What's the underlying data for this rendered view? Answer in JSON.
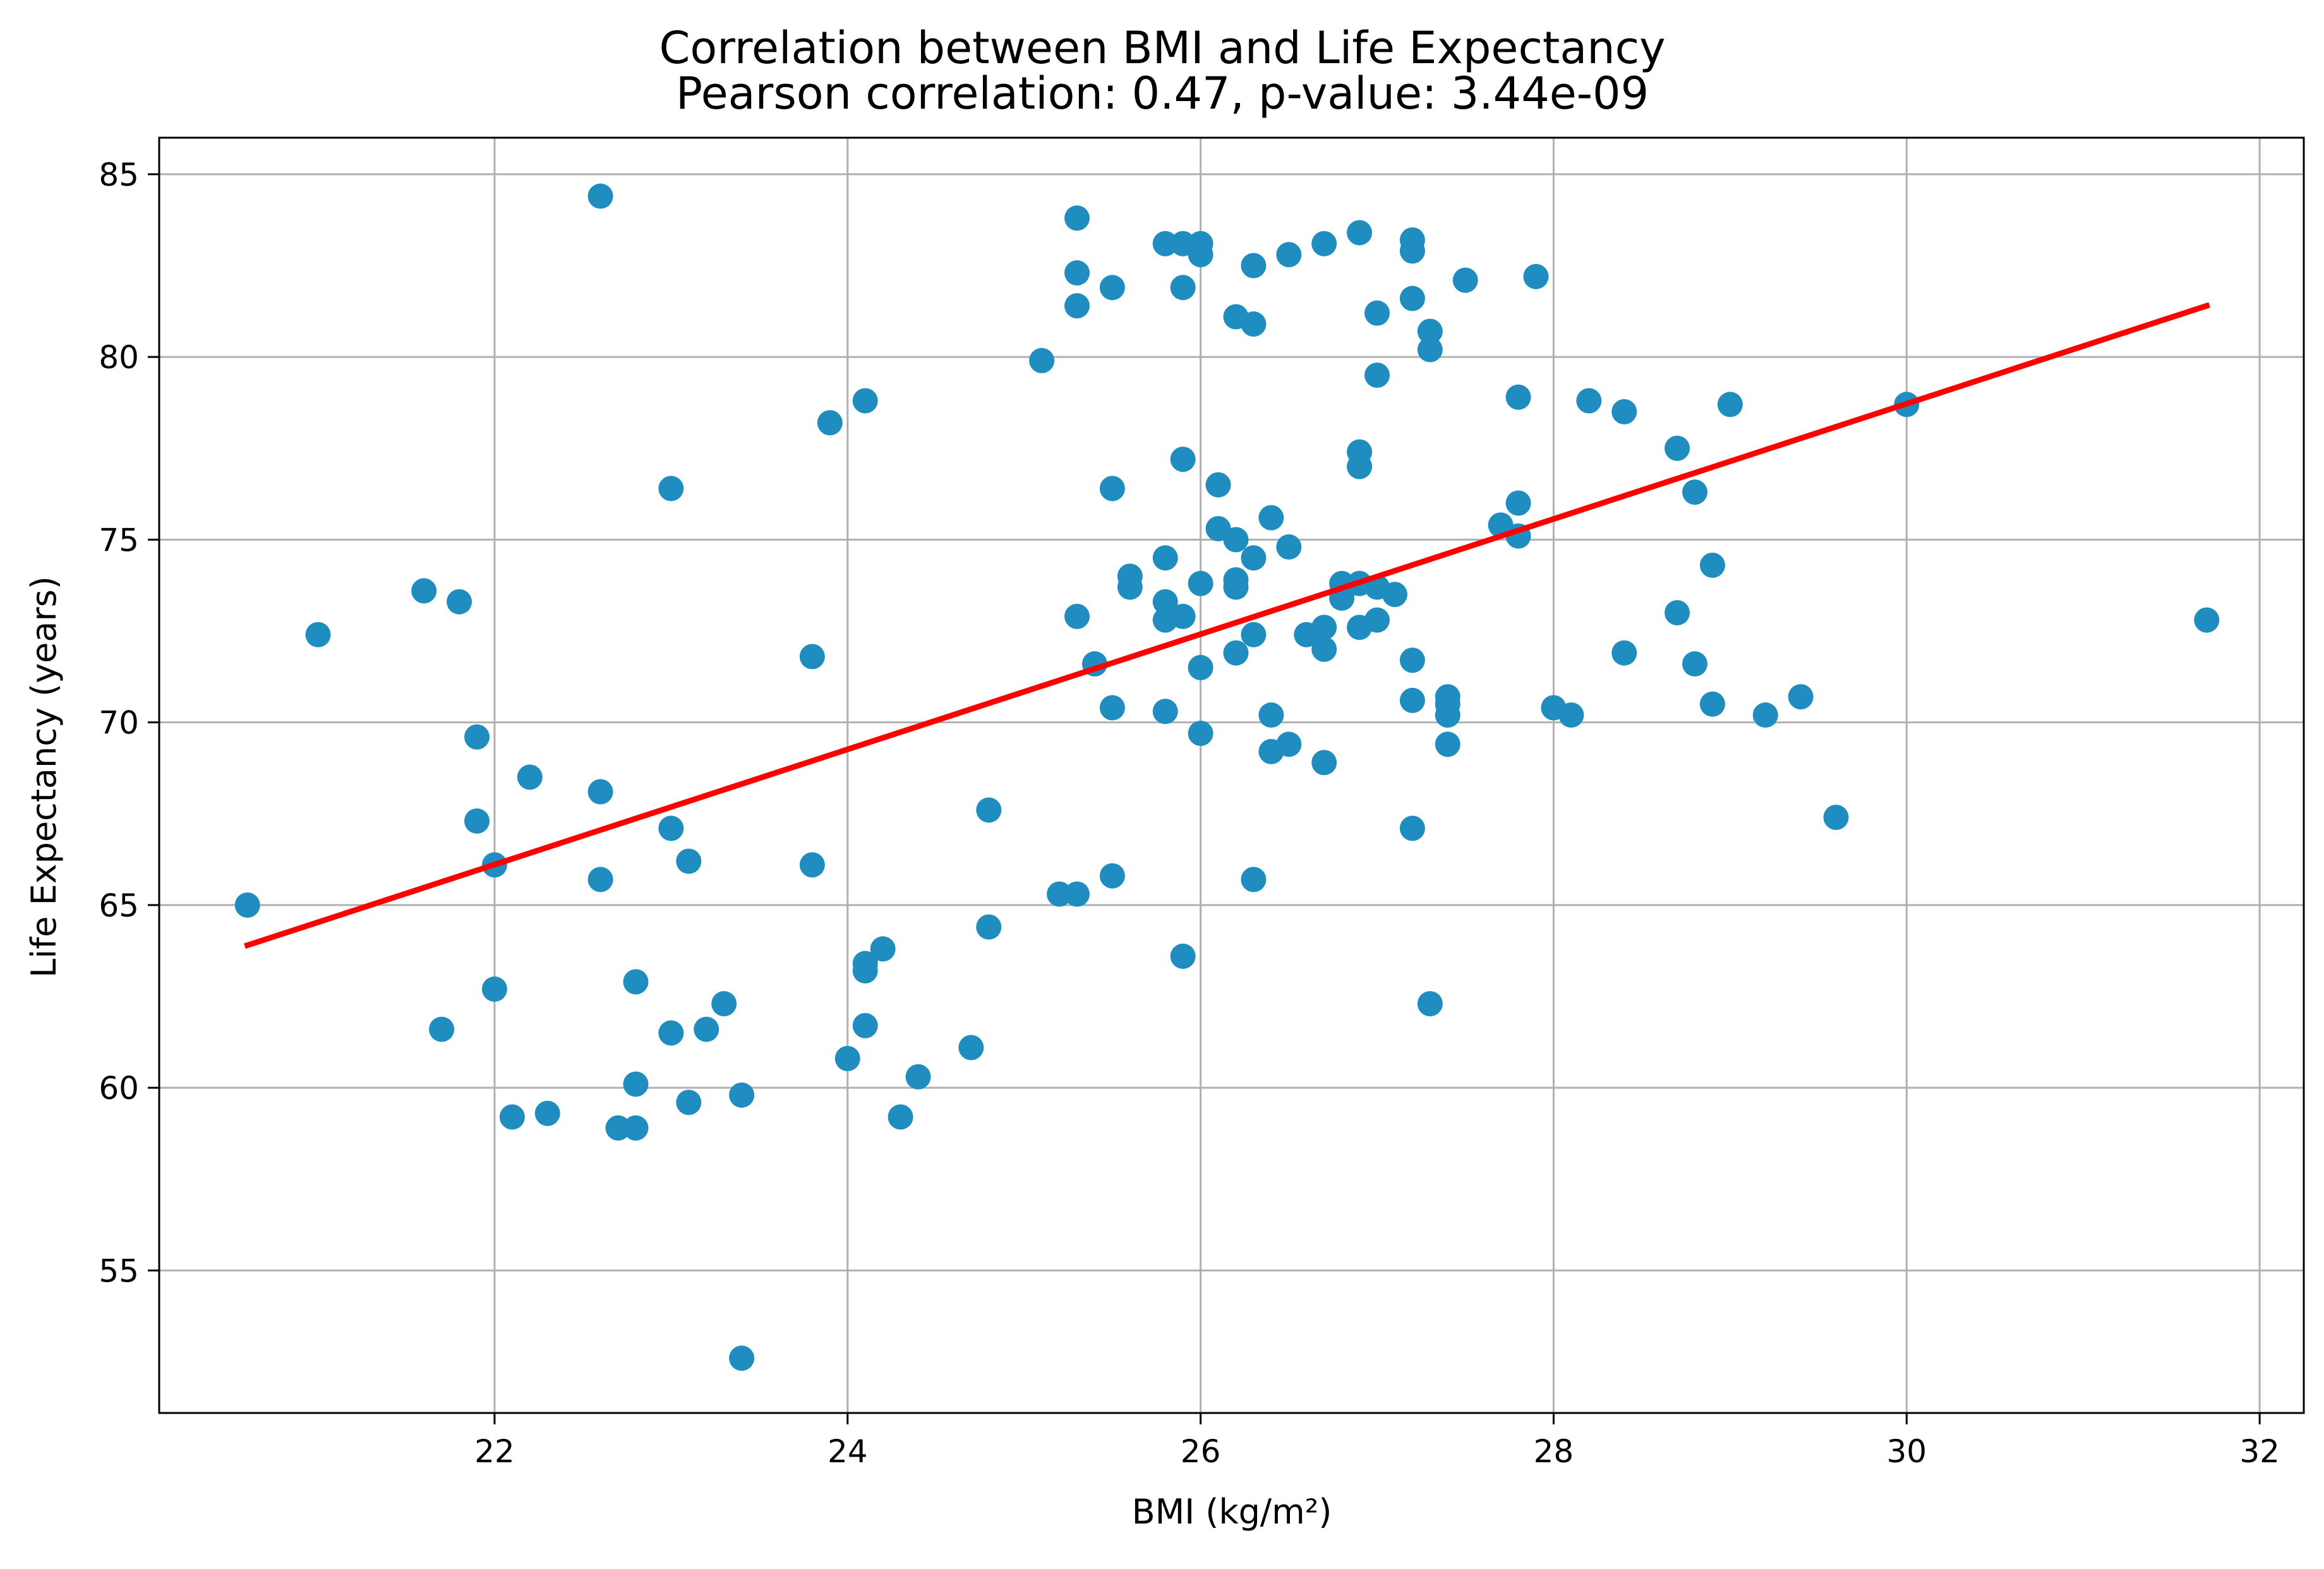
{
  "colors": {
    "points": "#1f8dbf",
    "fit_line": "#ff0000",
    "grid": "#b0b0b0",
    "axes": "#000000"
  },
  "chart_data": {
    "type": "scatter",
    "title": "Correlation between BMI and Life Expectancy",
    "subtitle": "Pearson correlation: 0.47, p-value: 3.44e-09",
    "xlabel": "BMI (kg/m²)",
    "ylabel": "Life Expectancy (years)",
    "xlim": [
      20.1,
      32.25
    ],
    "ylim": [
      51.1,
      86.0
    ],
    "grid": true,
    "x_ticks": [
      22,
      24,
      26,
      28,
      30,
      32
    ],
    "y_ticks": [
      55,
      60,
      65,
      70,
      75,
      80,
      85
    ],
    "fit_line": {
      "x": [
        20.6,
        31.7
      ],
      "y": [
        63.9,
        81.4
      ]
    },
    "points": [
      [
        20.6,
        65.0
      ],
      [
        21.0,
        72.4
      ],
      [
        21.6,
        73.6
      ],
      [
        21.7,
        61.6
      ],
      [
        21.8,
        73.3
      ],
      [
        21.9,
        69.6
      ],
      [
        21.9,
        67.3
      ],
      [
        22.0,
        66.1
      ],
      [
        22.0,
        62.7
      ],
      [
        22.1,
        59.2
      ],
      [
        22.2,
        68.5
      ],
      [
        22.3,
        59.3
      ],
      [
        22.6,
        84.4
      ],
      [
        22.6,
        68.1
      ],
      [
        22.6,
        65.7
      ],
      [
        22.7,
        58.9
      ],
      [
        22.8,
        62.9
      ],
      [
        22.8,
        60.1
      ],
      [
        22.8,
        58.9
      ],
      [
        23.0,
        76.4
      ],
      [
        23.0,
        67.1
      ],
      [
        23.0,
        61.5
      ],
      [
        23.1,
        66.2
      ],
      [
        23.1,
        59.6
      ],
      [
        23.2,
        61.6
      ],
      [
        23.3,
        62.3
      ],
      [
        23.4,
        59.8
      ],
      [
        23.4,
        52.6
      ],
      [
        23.8,
        71.8
      ],
      [
        23.8,
        66.1
      ],
      [
        23.9,
        78.2
      ],
      [
        24.0,
        60.8
      ],
      [
        24.1,
        78.8
      ],
      [
        24.1,
        63.4
      ],
      [
        24.1,
        63.2
      ],
      [
        24.1,
        61.7
      ],
      [
        24.2,
        63.8
      ],
      [
        24.3,
        59.2
      ],
      [
        24.4,
        60.3
      ],
      [
        24.7,
        61.1
      ],
      [
        24.8,
        67.6
      ],
      [
        24.8,
        64.4
      ],
      [
        25.1,
        79.9
      ],
      [
        25.2,
        65.3
      ],
      [
        25.3,
        83.8
      ],
      [
        25.3,
        82.3
      ],
      [
        25.3,
        81.4
      ],
      [
        25.3,
        72.9
      ],
      [
        25.3,
        65.3
      ],
      [
        25.4,
        71.6
      ],
      [
        25.5,
        81.9
      ],
      [
        25.5,
        76.4
      ],
      [
        25.5,
        70.4
      ],
      [
        25.5,
        65.8
      ],
      [
        25.6,
        74.0
      ],
      [
        25.6,
        73.7
      ],
      [
        25.8,
        83.1
      ],
      [
        25.8,
        74.5
      ],
      [
        25.8,
        73.3
      ],
      [
        25.8,
        72.8
      ],
      [
        25.8,
        70.3
      ],
      [
        25.9,
        83.1
      ],
      [
        25.9,
        81.9
      ],
      [
        25.9,
        77.2
      ],
      [
        25.9,
        72.9
      ],
      [
        25.9,
        63.6
      ],
      [
        26.0,
        83.1
      ],
      [
        26.0,
        82.8
      ],
      [
        26.0,
        73.8
      ],
      [
        26.0,
        71.5
      ],
      [
        26.0,
        69.7
      ],
      [
        26.1,
        76.5
      ],
      [
        26.1,
        75.3
      ],
      [
        26.2,
        81.1
      ],
      [
        26.2,
        75.0
      ],
      [
        26.2,
        73.9
      ],
      [
        26.2,
        73.7
      ],
      [
        26.2,
        71.9
      ],
      [
        26.3,
        82.5
      ],
      [
        26.3,
        80.9
      ],
      [
        26.3,
        74.5
      ],
      [
        26.3,
        72.4
      ],
      [
        26.3,
        65.7
      ],
      [
        26.4,
        75.6
      ],
      [
        26.4,
        70.2
      ],
      [
        26.4,
        69.2
      ],
      [
        26.5,
        82.8
      ],
      [
        26.5,
        74.8
      ],
      [
        26.5,
        69.4
      ],
      [
        26.6,
        72.4
      ],
      [
        26.7,
        83.1
      ],
      [
        26.7,
        72.6
      ],
      [
        26.7,
        72.0
      ],
      [
        26.7,
        68.9
      ],
      [
        26.8,
        73.8
      ],
      [
        26.8,
        73.5
      ],
      [
        26.8,
        73.4
      ],
      [
        26.9,
        83.4
      ],
      [
        26.9,
        77.4
      ],
      [
        26.9,
        77.0
      ],
      [
        26.9,
        73.8
      ],
      [
        26.9,
        72.6
      ],
      [
        27.0,
        81.2
      ],
      [
        27.0,
        79.5
      ],
      [
        27.0,
        73.7
      ],
      [
        27.0,
        72.8
      ],
      [
        27.1,
        73.5
      ],
      [
        27.2,
        83.2
      ],
      [
        27.2,
        82.9
      ],
      [
        27.2,
        81.6
      ],
      [
        27.2,
        71.7
      ],
      [
        27.2,
        70.6
      ],
      [
        27.2,
        67.1
      ],
      [
        27.3,
        80.7
      ],
      [
        27.3,
        80.2
      ],
      [
        27.3,
        62.3
      ],
      [
        27.4,
        70.7
      ],
      [
        27.4,
        70.5
      ],
      [
        27.4,
        70.2
      ],
      [
        27.4,
        69.4
      ],
      [
        27.5,
        82.1
      ],
      [
        27.7,
        75.4
      ],
      [
        27.8,
        78.9
      ],
      [
        27.8,
        76.0
      ],
      [
        27.8,
        75.1
      ],
      [
        27.9,
        82.2
      ],
      [
        28.0,
        70.4
      ],
      [
        28.1,
        70.2
      ],
      [
        28.2,
        78.8
      ],
      [
        28.4,
        78.5
      ],
      [
        28.4,
        71.9
      ],
      [
        28.7,
        77.5
      ],
      [
        28.7,
        73.0
      ],
      [
        28.8,
        76.3
      ],
      [
        28.8,
        71.6
      ],
      [
        28.9,
        74.3
      ],
      [
        28.9,
        70.5
      ],
      [
        29.0,
        78.7
      ],
      [
        29.2,
        70.2
      ],
      [
        29.4,
        70.7
      ],
      [
        29.6,
        67.4
      ],
      [
        30.0,
        78.7
      ],
      [
        31.7,
        72.8
      ]
    ]
  }
}
